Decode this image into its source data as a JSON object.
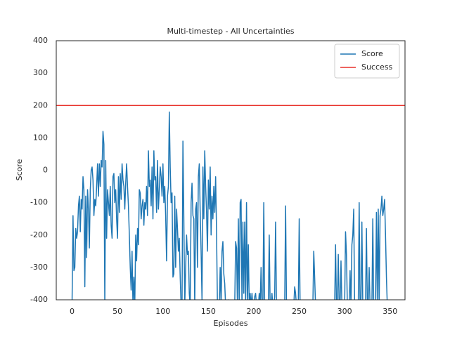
{
  "chart_data": {
    "type": "line",
    "title": "Multi-timestep - All Uncertainties",
    "x_label": "Episodes",
    "y_label": "Score",
    "xlim": [
      -17.45,
      366.45
    ],
    "xticks": [
      0,
      50,
      100,
      150,
      200,
      250,
      300,
      350
    ],
    "ylim": [
      -400,
      400
    ],
    "yticks": [
      -400,
      -300,
      -200,
      -100,
      0,
      100,
      200,
      300,
      400
    ],
    "legend": "upper right",
    "grid": false,
    "series": [
      {
        "name": "Score",
        "color": "#1f77b4",
        "values": [
          -400,
          -140,
          -310,
          -300,
          -180,
          -210,
          -190,
          -110,
          -80,
          -190,
          -90,
          -120,
          -20,
          -60,
          -360,
          -80,
          -270,
          -60,
          -120,
          -240,
          -60,
          0,
          10,
          -30,
          -140,
          -90,
          -110,
          -50,
          20,
          -80,
          20,
          -50,
          30,
          10,
          120,
          80,
          -420,
          30,
          -210,
          -60,
          -100,
          -140,
          -50,
          -170,
          -210,
          -20,
          -10,
          -100,
          -60,
          -150,
          -210,
          -20,
          -130,
          -10,
          -90,
          20,
          -30,
          -50,
          -120,
          -40,
          20,
          -50,
          -110,
          -200,
          -300,
          -370,
          -250,
          -420,
          -330,
          -420,
          -200,
          -280,
          -180,
          -230,
          -60,
          -70,
          -150,
          -110,
          -90,
          -170,
          -100,
          -120,
          -50,
          -140,
          60,
          -50,
          -30,
          -110,
          10,
          -150,
          60,
          -30,
          -20,
          -130,
          30,
          -120,
          -60,
          10,
          -20,
          -80,
          20,
          -100,
          -50,
          -140,
          -280,
          -80,
          -50,
          180,
          10,
          -100,
          -70,
          -330,
          -320,
          -80,
          -300,
          -120,
          -180,
          -250,
          -210,
          -330,
          -420,
          -420,
          90,
          -150,
          -420,
          -300,
          -200,
          -260,
          -250,
          -380,
          -420,
          -100,
          -40,
          -140,
          -150,
          -420,
          -120,
          -100,
          -300,
          -20,
          20,
          -130,
          -250,
          -400,
          10,
          -150,
          60,
          -50,
          -130,
          -250,
          -30,
          -120,
          10,
          -200,
          -80,
          -150,
          -50,
          -130,
          -20,
          -190,
          -420,
          -420,
          -420,
          -300,
          -420,
          -250,
          -220,
          -320,
          -350,
          -420,
          -420,
          -420,
          -400,
          -420,
          -420,
          -420,
          -420,
          -420,
          -420,
          -420,
          -220,
          -240,
          -420,
          -150,
          -420,
          -100,
          -90,
          -420,
          -160,
          -380,
          -160,
          -420,
          -100,
          -420,
          -230,
          -420,
          -380,
          -420,
          -380,
          -420,
          -420,
          -390,
          -380,
          -420,
          -400,
          -420,
          -380,
          -420,
          -300,
          -420,
          -420,
          -100,
          -420,
          -420,
          -420,
          -420,
          -420,
          -200,
          -420,
          -420,
          -380,
          -420,
          -420,
          -390,
          -160,
          -420,
          -420,
          -420,
          -420,
          -420,
          -400,
          -420,
          -420,
          -420,
          -420,
          -110,
          -420,
          -420,
          -420,
          -420,
          -420,
          -420,
          -420,
          -420,
          -420,
          -360,
          -380,
          -420,
          -420,
          -420,
          -150,
          -420,
          -420,
          -420,
          -420,
          -420,
          -420,
          -420,
          -420,
          -420,
          -420,
          -420,
          -420,
          -420,
          -420,
          -420,
          -250,
          -330,
          -420,
          -420,
          -420,
          -420,
          -420,
          -420,
          -420,
          -420,
          -420,
          -420,
          -420,
          -420,
          -420,
          -420,
          -420,
          -420,
          -420,
          -420,
          -420,
          -420,
          -420,
          -420,
          -230,
          -420,
          -420,
          -260,
          -420,
          -420,
          -280,
          -420,
          -420,
          -420,
          -420,
          -190,
          -260,
          -420,
          -420,
          -420,
          -310,
          -420,
          -230,
          -200,
          -120,
          -420,
          -420,
          -420,
          -420,
          -420,
          -100,
          -420,
          -420,
          -160,
          -420,
          -420,
          -420,
          -420,
          -180,
          -420,
          -420,
          -300,
          -420,
          -420,
          -420,
          -150,
          -420,
          -420,
          -420,
          -130,
          -420,
          -120,
          -420,
          -140,
          -120,
          -80,
          -140,
          -120,
          -90,
          -200,
          -330,
          -420,
          -420
        ]
      }
    ],
    "reference_lines": [
      {
        "name": "Success",
        "value": 200,
        "color": "#e8312a"
      }
    ]
  }
}
